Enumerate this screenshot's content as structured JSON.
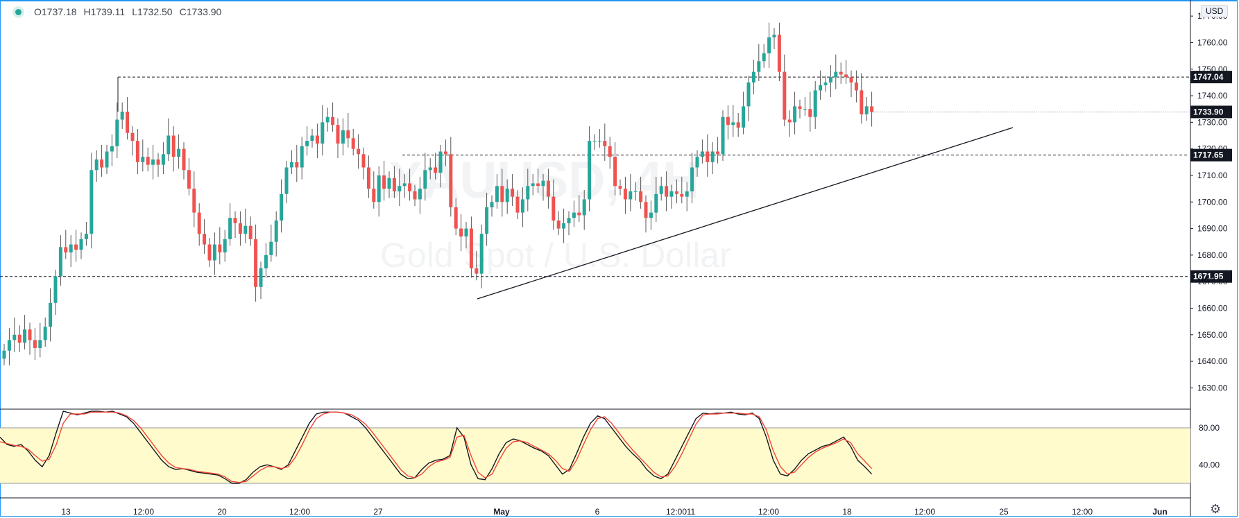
{
  "ohlc": {
    "open": "O1737.18",
    "high": "H1739.11",
    "low": "L1732.50",
    "close": "C1733.90"
  },
  "currency_label": "USD",
  "watermark": {
    "symbol": "XAUUSD, 4H",
    "name": "Gold Spot / U.S. Dollar"
  },
  "colors": {
    "up": "#26a69a",
    "down": "#ef5350",
    "k_line": "#131722",
    "d_line": "#f44336",
    "band": "#fffbcc"
  },
  "icons": {
    "symbol_status": "status-dot-icon",
    "settings": "gear-icon"
  },
  "chart_data": {
    "type": "candlestick",
    "title": "",
    "ylim": [
      1622,
      1775
    ],
    "y_ticks": [
      1630,
      1640,
      1650,
      1660,
      1670,
      1680,
      1690,
      1700,
      1710,
      1720,
      1730,
      1740,
      1750,
      1760,
      1770
    ],
    "x_tick_labels": [
      "13",
      "12:00",
      "20",
      "12:00",
      "27",
      "May",
      "6",
      "12:00",
      "11",
      "12:00",
      "18",
      "12:00",
      "25",
      "12:00",
      "Jun"
    ],
    "horizontal_levels": [
      1747.04,
      1717.65,
      1671.95
    ],
    "last_price": 1733.9,
    "trendline": [
      [
        1663.5,
        1728.0
      ]
    ],
    "series": [
      {
        "name": "",
        "closes": [
          1644,
          1648,
          1650,
          1647,
          1652,
          1648,
          1645,
          1648,
          1653,
          1662,
          1672,
          1683,
          1681,
          1684,
          1682,
          1686,
          1688,
          1712,
          1716,
          1713,
          1719,
          1721,
          1731,
          1734,
          1726,
          1723,
          1715,
          1717,
          1714,
          1716,
          1714,
          1718,
          1725,
          1717,
          1720,
          1712,
          1705,
          1696,
          1688,
          1684,
          1678,
          1684,
          1681,
          1686,
          1694,
          1692,
          1688,
          1691,
          1686,
          1668,
          1675,
          1680,
          1685,
          1693,
          1703,
          1713,
          1715,
          1713,
          1721,
          1723,
          1725,
          1722,
          1730,
          1732,
          1729,
          1722,
          1727,
          1724,
          1720,
          1718,
          1713,
          1705,
          1700,
          1710,
          1705,
          1709,
          1704,
          1706,
          1707,
          1704,
          1701,
          1705,
          1712,
          1713,
          1711,
          1719,
          1718,
          1698,
          1690,
          1687,
          1690,
          1675,
          1673,
          1688,
          1698,
          1700,
          1706,
          1700,
          1705,
          1702,
          1696,
          1701,
          1706,
          1707,
          1706,
          1708,
          1702,
          1693,
          1690,
          1692,
          1694,
          1696,
          1695,
          1701,
          1723,
          1723,
          1723,
          1721,
          1717,
          1706,
          1705,
          1701,
          1704,
          1704,
          1700,
          1694,
          1696,
          1703,
          1706,
          1702,
          1704,
          1703,
          1702,
          1704,
          1713,
          1717,
          1719,
          1715,
          1719,
          1718,
          1732,
          1729,
          1730,
          1728,
          1736,
          1745,
          1749,
          1753,
          1756,
          1762,
          1763,
          1749,
          1731,
          1730,
          1736,
          1735,
          1735,
          1732,
          1742,
          1744,
          1745,
          1747,
          1749,
          1748,
          1747,
          1745,
          1742,
          1733,
          1736,
          1733.9
        ]
      },
      {
        "name": "",
        "stoch_k": [
          70,
          62,
          60,
          62,
          55,
          45,
          38,
          50,
          75,
          98,
          96,
          94,
          96,
          98,
          98,
          97,
          98,
          95,
          92,
          85,
          75,
          65,
          55,
          45,
          38,
          35,
          36,
          34,
          32,
          31,
          30,
          29,
          25,
          20,
          20,
          24,
          32,
          38,
          40,
          38,
          35,
          40,
          55,
          70,
          85,
          95,
          97,
          97,
          97,
          96,
          92,
          88,
          80,
          70,
          60,
          50,
          40,
          30,
          25,
          26,
          35,
          42,
          45,
          46,
          50,
          80,
          70,
          40,
          25,
          24,
          36,
          52,
          64,
          68,
          66,
          62,
          58,
          55,
          50,
          40,
          30,
          35,
          52,
          70,
          85,
          93,
          90,
          80,
          70,
          60,
          52,
          45,
          35,
          28,
          25,
          30,
          45,
          60,
          75,
          90,
          96,
          95,
          96,
          96,
          97,
          95,
          94,
          96,
          90,
          70,
          45,
          30,
          28,
          35,
          45,
          52,
          56,
          60,
          62,
          66,
          70,
          60,
          45,
          38,
          30
        ]
      },
      {
        "name": "",
        "stoch_d": [
          65,
          63,
          61,
          60,
          57,
          50,
          44,
          46,
          62,
          85,
          95,
          95,
          95,
          97,
          97,
          97,
          97,
          96,
          93,
          88,
          80,
          70,
          60,
          50,
          42,
          37,
          36,
          35,
          33,
          32,
          31,
          30,
          27,
          22,
          21,
          22,
          28,
          34,
          38,
          38,
          36,
          38,
          48,
          62,
          78,
          90,
          95,
          97,
          97,
          96,
          94,
          90,
          84,
          75,
          65,
          55,
          45,
          35,
          28,
          26,
          30,
          38,
          43,
          45,
          48,
          70,
          72,
          50,
          32,
          26,
          30,
          45,
          58,
          65,
          66,
          64,
          60,
          56,
          52,
          45,
          36,
          33,
          45,
          62,
          78,
          90,
          92,
          85,
          75,
          65,
          56,
          48,
          40,
          32,
          27,
          28,
          38,
          52,
          68,
          84,
          94,
          95,
          95,
          96,
          96,
          96,
          95,
          95,
          92,
          78,
          55,
          38,
          30,
          32,
          40,
          48,
          54,
          58,
          61,
          64,
          68,
          64,
          52,
          44,
          36
        ]
      }
    ],
    "oscillator_ticks": [
      40.0,
      80.0
    ],
    "oscillator_band": [
      20,
      80
    ]
  }
}
